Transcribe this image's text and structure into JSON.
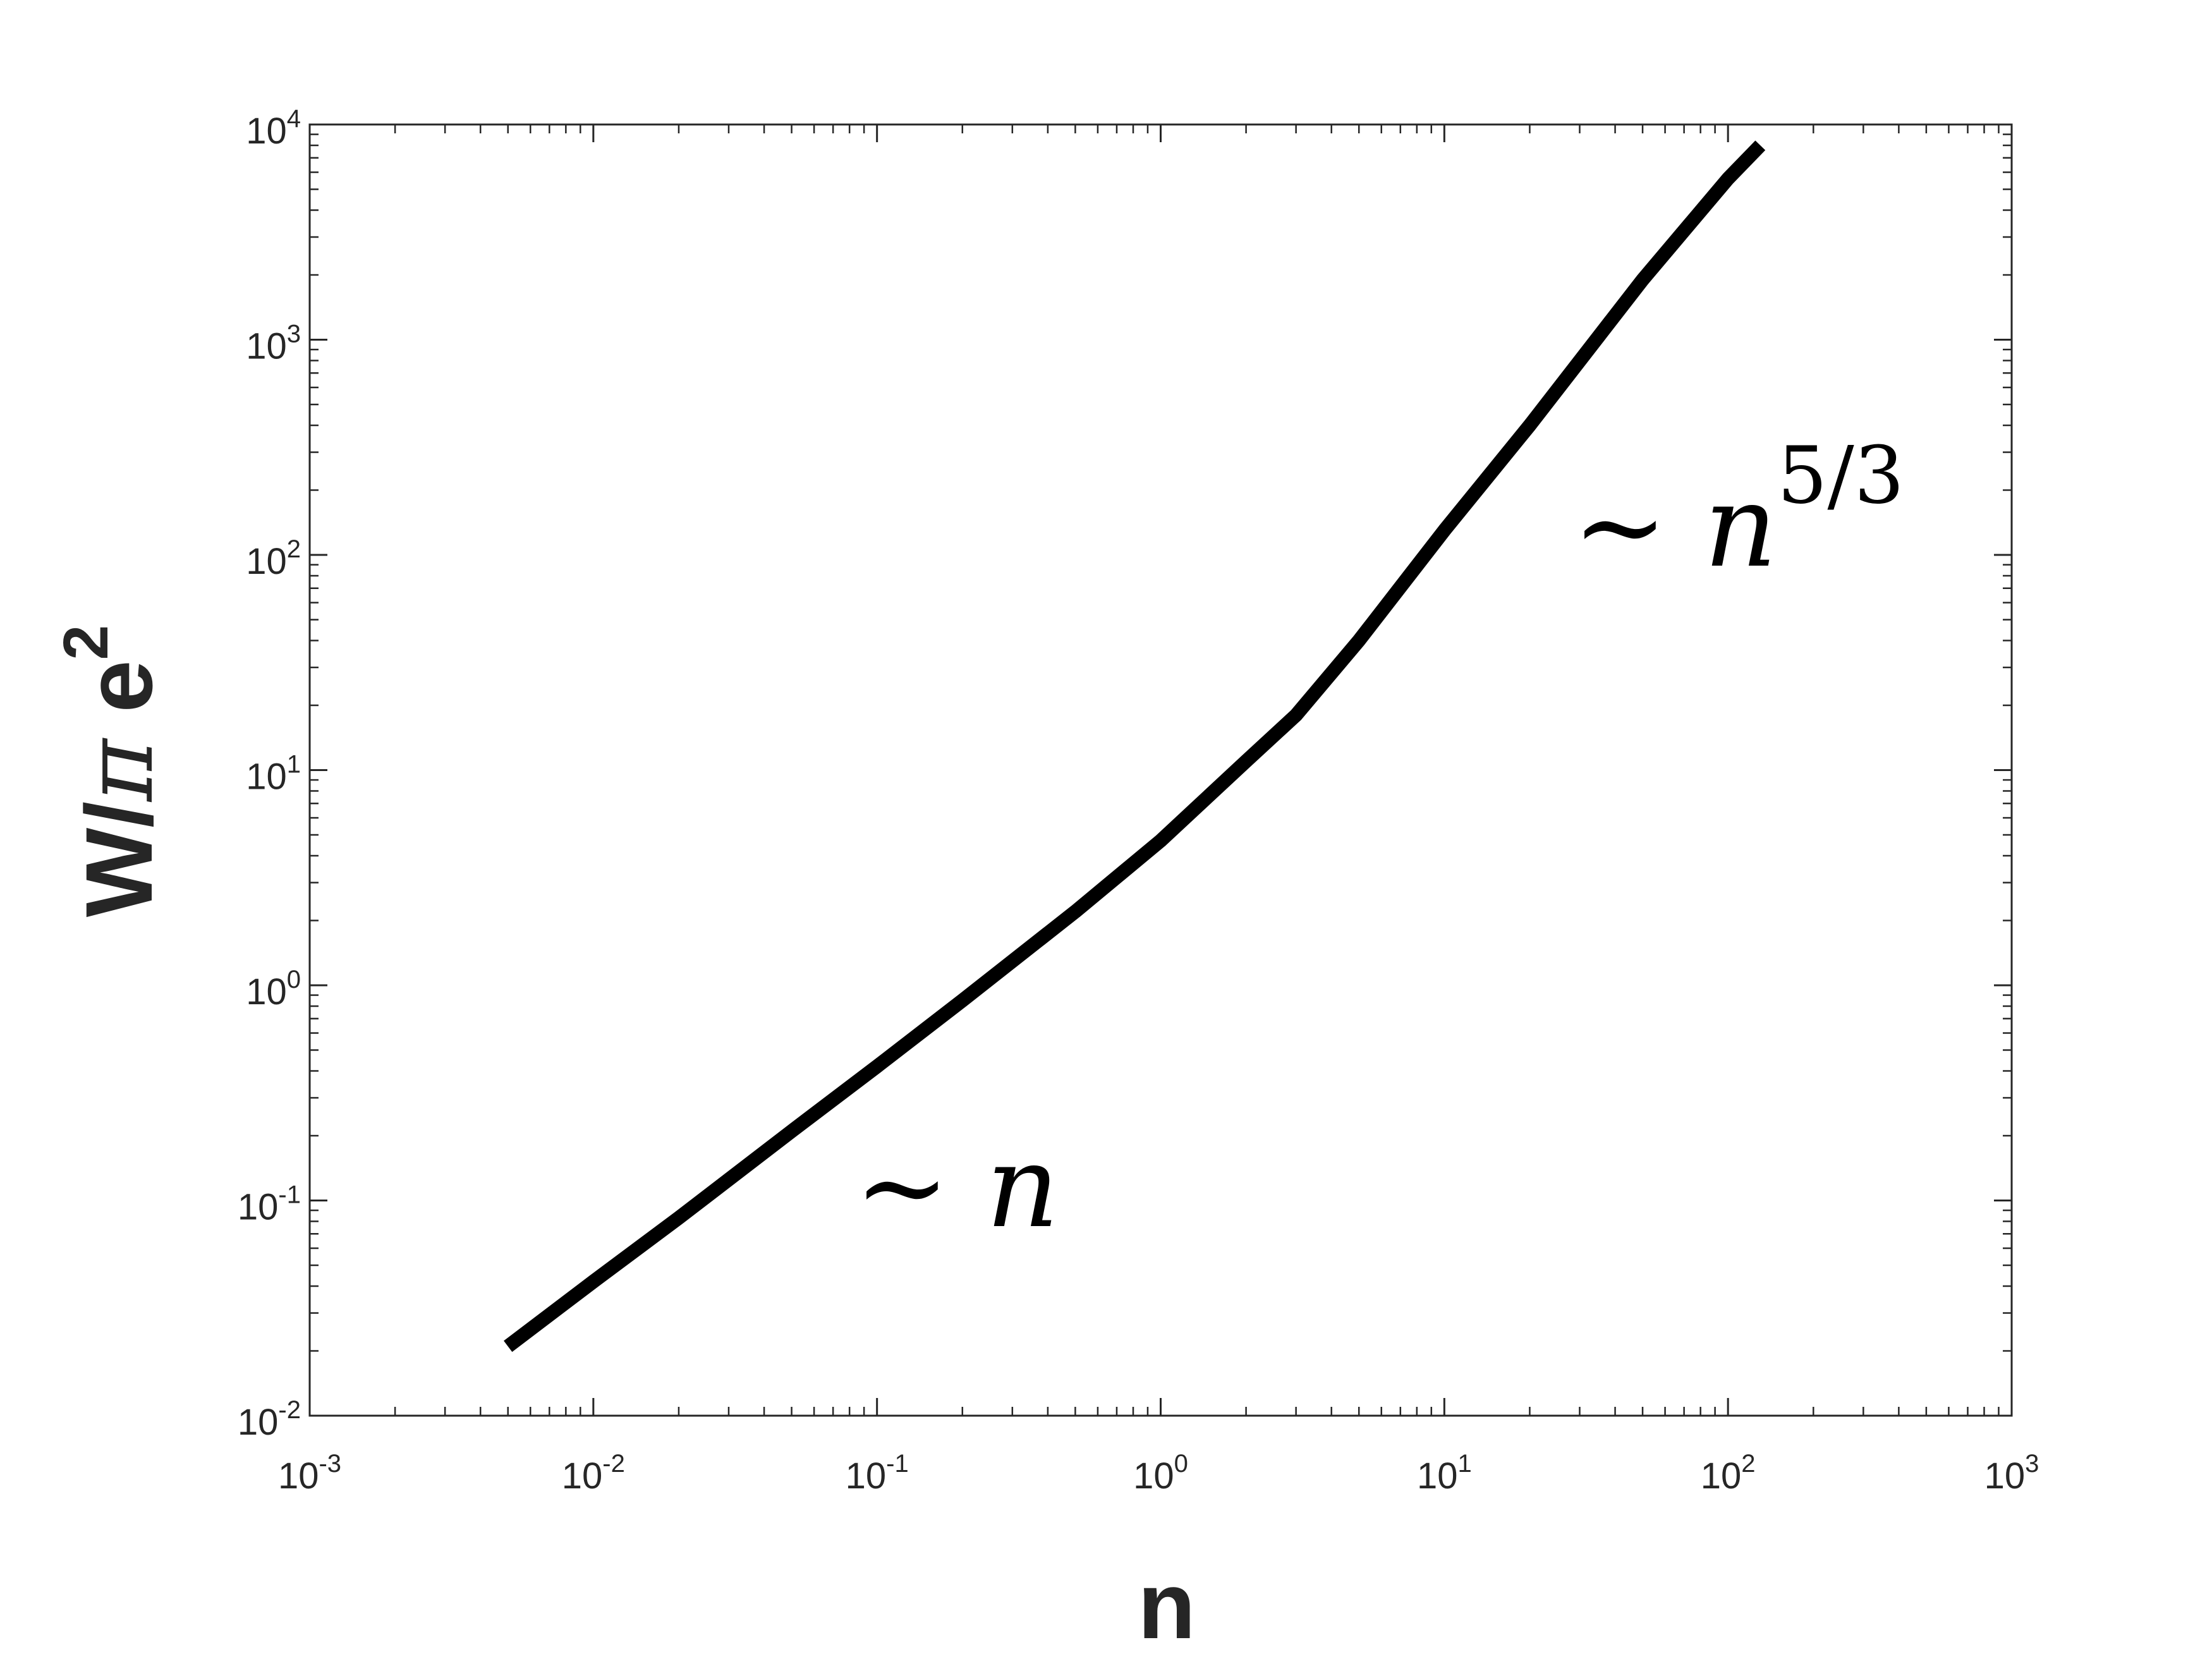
{
  "chart_data": {
    "type": "line",
    "xscale": "log",
    "yscale": "log",
    "xlim": [
      0.001,
      1000
    ],
    "ylim": [
      0.01,
      10000
    ],
    "grid": false,
    "xlabel": "n",
    "ylabel": {
      "main": "W/",
      "pi": "π",
      "e": " e",
      "sup": "2"
    },
    "x_ticks": [
      {
        "value": 0.001,
        "base": "10",
        "exp": "-3"
      },
      {
        "value": 0.01,
        "base": "10",
        "exp": "-2"
      },
      {
        "value": 0.1,
        "base": "10",
        "exp": "-1"
      },
      {
        "value": 1,
        "base": "10",
        "exp": "0"
      },
      {
        "value": 10,
        "base": "10",
        "exp": "1"
      },
      {
        "value": 100,
        "base": "10",
        "exp": "2"
      },
      {
        "value": 1000,
        "base": "10",
        "exp": "3"
      }
    ],
    "y_ticks": [
      {
        "value": 0.01,
        "base": "10",
        "exp": "-2"
      },
      {
        "value": 0.1,
        "base": "10",
        "exp": "-1"
      },
      {
        "value": 1,
        "base": "10",
        "exp": "0"
      },
      {
        "value": 10,
        "base": "10",
        "exp": "1"
      },
      {
        "value": 100,
        "base": "10",
        "exp": "2"
      },
      {
        "value": 1000,
        "base": "10",
        "exp": "3"
      },
      {
        "value": 10000,
        "base": "10",
        "exp": "4"
      }
    ],
    "series": [
      {
        "color": "#000000",
        "x": [
          0.005,
          0.01,
          0.02,
          0.05,
          0.1,
          0.2,
          0.5,
          1,
          2,
          3,
          5,
          10,
          20,
          50,
          100,
          130
        ],
        "y": [
          0.021,
          0.042,
          0.083,
          0.21,
          0.42,
          0.85,
          2.2,
          4.7,
          11,
          18,
          40,
          130,
          400,
          1900,
          5600,
          8000
        ]
      }
    ],
    "annotations": [
      {
        "sym": "∼ ",
        "var": "n",
        "sup": ""
      },
      {
        "sym": "∼ ",
        "var": "n",
        "sup": "5/3"
      }
    ]
  }
}
